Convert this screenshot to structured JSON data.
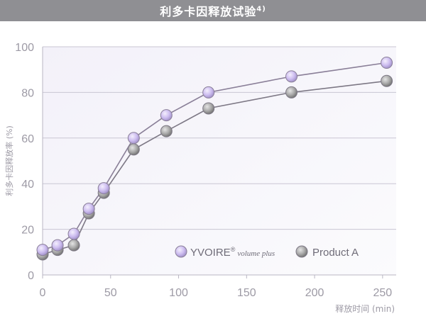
{
  "chart_data": {
    "type": "line",
    "title": "利多卡因释放试验",
    "title_sup": "4)",
    "xlabel": "释放时间 (min)",
    "ylabel": "利多卡因释放率 (%)",
    "xlim": [
      0,
      260
    ],
    "ylim": [
      0,
      100
    ],
    "xticks": [
      "0",
      "50",
      "100",
      "150",
      "200",
      "250"
    ],
    "yticks": [
      "0",
      "20",
      "40",
      "60",
      "80",
      "100"
    ],
    "grid": "horizontal",
    "legend_position": "bottom-right",
    "series": [
      {
        "name": "YVOIRE",
        "name_mark": "®",
        "name_suffix": "volume plus",
        "color": "#c9b8ea",
        "line_color": "#8a7f98",
        "x": [
          0,
          11,
          23,
          34,
          45,
          67,
          91,
          122,
          183,
          253
        ],
        "y": [
          11,
          13,
          18,
          29,
          38,
          60,
          70,
          80,
          87,
          93
        ]
      },
      {
        "name": "Product A",
        "color": "#a7a7a7",
        "line_color": "#7d7885",
        "x": [
          0,
          11,
          23,
          34,
          45,
          67,
          91,
          122,
          183,
          253
        ],
        "y": [
          9,
          11,
          13,
          27,
          36,
          55,
          63,
          73,
          80,
          85
        ]
      }
    ]
  }
}
